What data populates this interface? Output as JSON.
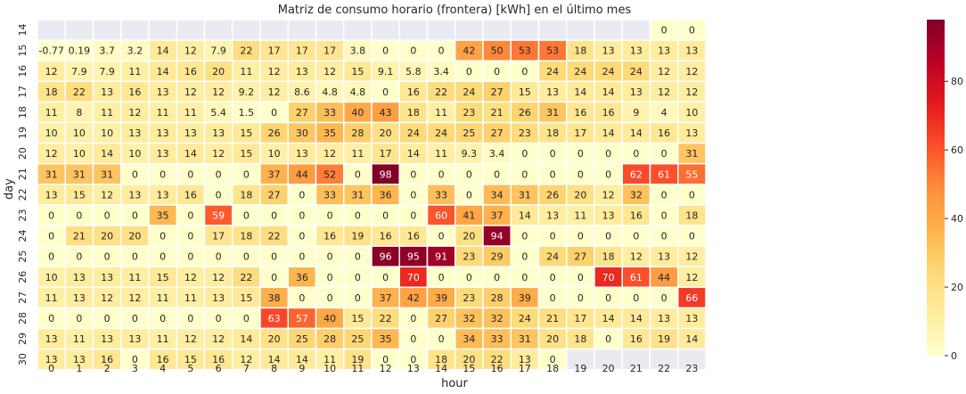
{
  "chart_data": {
    "type": "heatmap",
    "title": "Matriz de consumo horario (frontera) [kWh] en el último mes",
    "xlabel": "hour",
    "ylabel": "day",
    "x": [
      "0",
      "1",
      "2",
      "3",
      "4",
      "5",
      "6",
      "7",
      "8",
      "9",
      "10",
      "11",
      "12",
      "13",
      "14",
      "15",
      "16",
      "17",
      "18",
      "19",
      "20",
      "21",
      "22",
      "23"
    ],
    "y": [
      "14",
      "15",
      "16",
      "17",
      "18",
      "19",
      "20",
      "21",
      "22",
      "23",
      "24",
      "25",
      "26",
      "27",
      "28",
      "29",
      "30"
    ],
    "values": [
      [
        null,
        null,
        null,
        null,
        null,
        null,
        null,
        null,
        null,
        null,
        null,
        null,
        null,
        null,
        null,
        null,
        null,
        null,
        null,
        null,
        null,
        null,
        0,
        0
      ],
      [
        -0.77,
        0.19,
        3.7,
        3.2,
        14,
        12,
        7.9,
        22,
        17,
        17,
        17,
        3.8,
        0,
        0,
        0,
        42,
        50,
        53,
        53,
        18,
        13,
        13,
        13,
        13
      ],
      [
        12,
        7.9,
        7.9,
        11,
        14,
        16,
        20,
        11,
        12,
        13,
        12,
        15,
        9.1,
        5.8,
        3.4,
        0,
        0,
        0,
        24,
        24,
        24,
        24,
        12,
        12
      ],
      [
        18,
        22,
        13,
        16,
        13,
        12,
        12,
        9.2,
        12,
        8.6,
        4.8,
        4.8,
        0,
        16,
        22,
        24,
        27,
        15,
        13,
        14,
        14,
        13,
        12,
        12
      ],
      [
        11,
        8,
        11,
        12,
        11,
        11,
        5.4,
        1.5,
        0,
        27,
        33,
        40,
        43,
        18,
        11,
        23,
        21,
        26,
        31,
        16,
        16,
        9,
        4,
        10
      ],
      [
        10,
        10,
        10,
        13,
        13,
        13,
        13,
        15,
        26,
        30,
        35,
        28,
        20,
        24,
        24,
        25,
        27,
        23,
        18,
        17,
        14,
        14,
        16,
        13
      ],
      [
        12,
        10,
        14,
        10,
        13,
        14,
        12,
        15,
        10,
        13,
        12,
        11,
        17,
        14,
        11,
        9.3,
        3.4,
        0,
        0,
        0,
        0,
        0,
        0,
        31
      ],
      [
        31,
        31,
        31,
        0,
        0,
        0,
        0,
        0,
        37,
        44,
        52,
        0,
        98,
        0,
        0,
        0,
        0,
        0,
        0,
        0,
        0,
        62,
        61,
        55
      ],
      [
        13,
        15,
        12,
        13,
        13,
        16,
        0,
        18,
        27,
        0,
        33,
        31,
        36,
        0,
        33,
        0,
        34,
        31,
        26,
        20,
        12,
        32,
        0,
        0
      ],
      [
        0,
        0,
        0,
        0,
        35,
        0,
        59,
        0,
        0,
        0,
        0,
        0,
        0,
        0,
        60,
        41,
        37,
        14,
        13,
        11,
        13,
        16,
        0,
        18
      ],
      [
        0,
        21,
        20,
        20,
        0,
        0,
        17,
        18,
        22,
        0,
        16,
        19,
        16,
        16,
        0,
        20,
        94,
        0,
        0,
        0,
        0,
        0,
        0,
        0
      ],
      [
        0,
        0,
        0,
        0,
        0,
        0,
        0,
        0,
        0,
        0,
        0,
        0,
        96,
        95,
        91,
        23,
        29,
        0,
        24,
        27,
        18,
        12,
        13,
        12
      ],
      [
        10,
        13,
        13,
        11,
        15,
        12,
        12,
        22,
        0,
        36,
        0,
        0,
        0,
        70,
        0,
        0,
        0,
        0,
        0,
        0,
        70,
        61,
        44,
        12
      ],
      [
        11,
        13,
        12,
        12,
        11,
        11,
        13,
        15,
        38,
        0,
        0,
        0,
        37,
        42,
        39,
        23,
        28,
        39,
        0,
        0,
        0,
        0,
        0,
        66
      ],
      [
        0,
        0,
        0,
        0,
        0,
        0,
        0,
        0,
        63,
        57,
        40,
        15,
        22,
        0,
        27,
        32,
        32,
        24,
        21,
        17,
        14,
        14,
        13,
        13
      ],
      [
        13,
        11,
        13,
        13,
        11,
        12,
        12,
        14,
        20,
        25,
        28,
        25,
        35,
        0,
        0,
        34,
        33,
        31,
        20,
        18,
        0,
        16,
        19,
        14
      ],
      [
        13,
        13,
        16,
        0,
        16,
        15,
        16,
        12,
        14,
        14,
        11,
        19,
        0,
        0,
        18,
        20,
        22,
        13,
        0,
        null,
        null,
        null,
        null,
        null
      ]
    ],
    "vmin": 0,
    "vmax": 98,
    "colorbar_ticks": [
      "0",
      "20",
      "40",
      "60",
      "80"
    ],
    "missing_color": "#eaeaf2",
    "colormap": "YlOrRd"
  }
}
